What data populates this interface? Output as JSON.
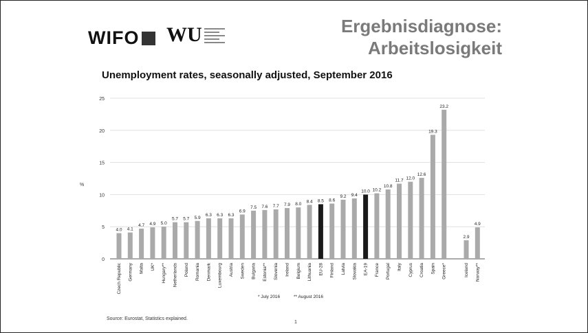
{
  "header": {
    "wifo_logo": "WIFO",
    "wu_logo": "WU",
    "title_line1": "Ergebnisdiagnose:",
    "title_line2": "Arbeitslosigkeit"
  },
  "footer": {
    "source": "Source: Eurostat, Statistics explained.",
    "page_number": "1",
    "footnote_july": "* July 2016",
    "footnote_august": "** August 2016"
  },
  "colors": {
    "bar_default": "#aaaaaa",
    "bar_highlight": "#1a1a1a",
    "title_gray": "#7a7a7a"
  },
  "chart_data": {
    "type": "bar",
    "title": "Unemployment rates, seasonally adjusted, September 2016",
    "ylabel": "%",
    "xlabel": "",
    "ylim": [
      0,
      25
    ],
    "yticks": [
      0,
      5,
      10,
      15,
      20,
      25
    ],
    "grid": true,
    "categories": [
      "Czech Republic",
      "Germany",
      "Malta",
      "UK*",
      "Hungary**",
      "Netherlands",
      "Poland",
      "Romania",
      "Denmark",
      "Luxembourg",
      "Austria",
      "Sweden",
      "Bulgaria",
      "Estonia**",
      "Slovenia",
      "Ireland",
      "Belgium",
      "Lithuania",
      "EU-28",
      "Finland",
      "Latvia",
      "Slovakia",
      "EA-19",
      "France",
      "Portugal",
      "Italy",
      "Cyprus",
      "Croatia",
      "Spain",
      "Greece*",
      "Iceland",
      "Norway**"
    ],
    "values": [
      4.0,
      4.1,
      4.7,
      4.9,
      5.0,
      5.7,
      5.7,
      5.9,
      6.3,
      6.3,
      6.3,
      6.9,
      7.5,
      7.6,
      7.7,
      7.9,
      8.0,
      8.4,
      8.5,
      8.6,
      9.2,
      9.4,
      10.0,
      10.2,
      10.8,
      11.7,
      12.0,
      12.6,
      19.3,
      23.2,
      2.9,
      4.9
    ],
    "value_labels": [
      "4.0",
      "4.1",
      "4.7",
      "4.9",
      "5.0",
      "5.7",
      "5.7",
      "5.9",
      "6.3",
      "6.3",
      "6.3",
      "6.9",
      "7.5",
      "7.6",
      "7.7",
      "7.9",
      "8.0",
      "8.4",
      "8.5",
      "8.6",
      "9.2",
      "9.4",
      "10.0",
      "10.2",
      "10.8",
      "11.7",
      "12.0",
      "12.6",
      "19.3",
      "23.2",
      "2.9",
      "4.9"
    ],
    "highlighted": [
      "EU-28",
      "EA-19"
    ]
  }
}
